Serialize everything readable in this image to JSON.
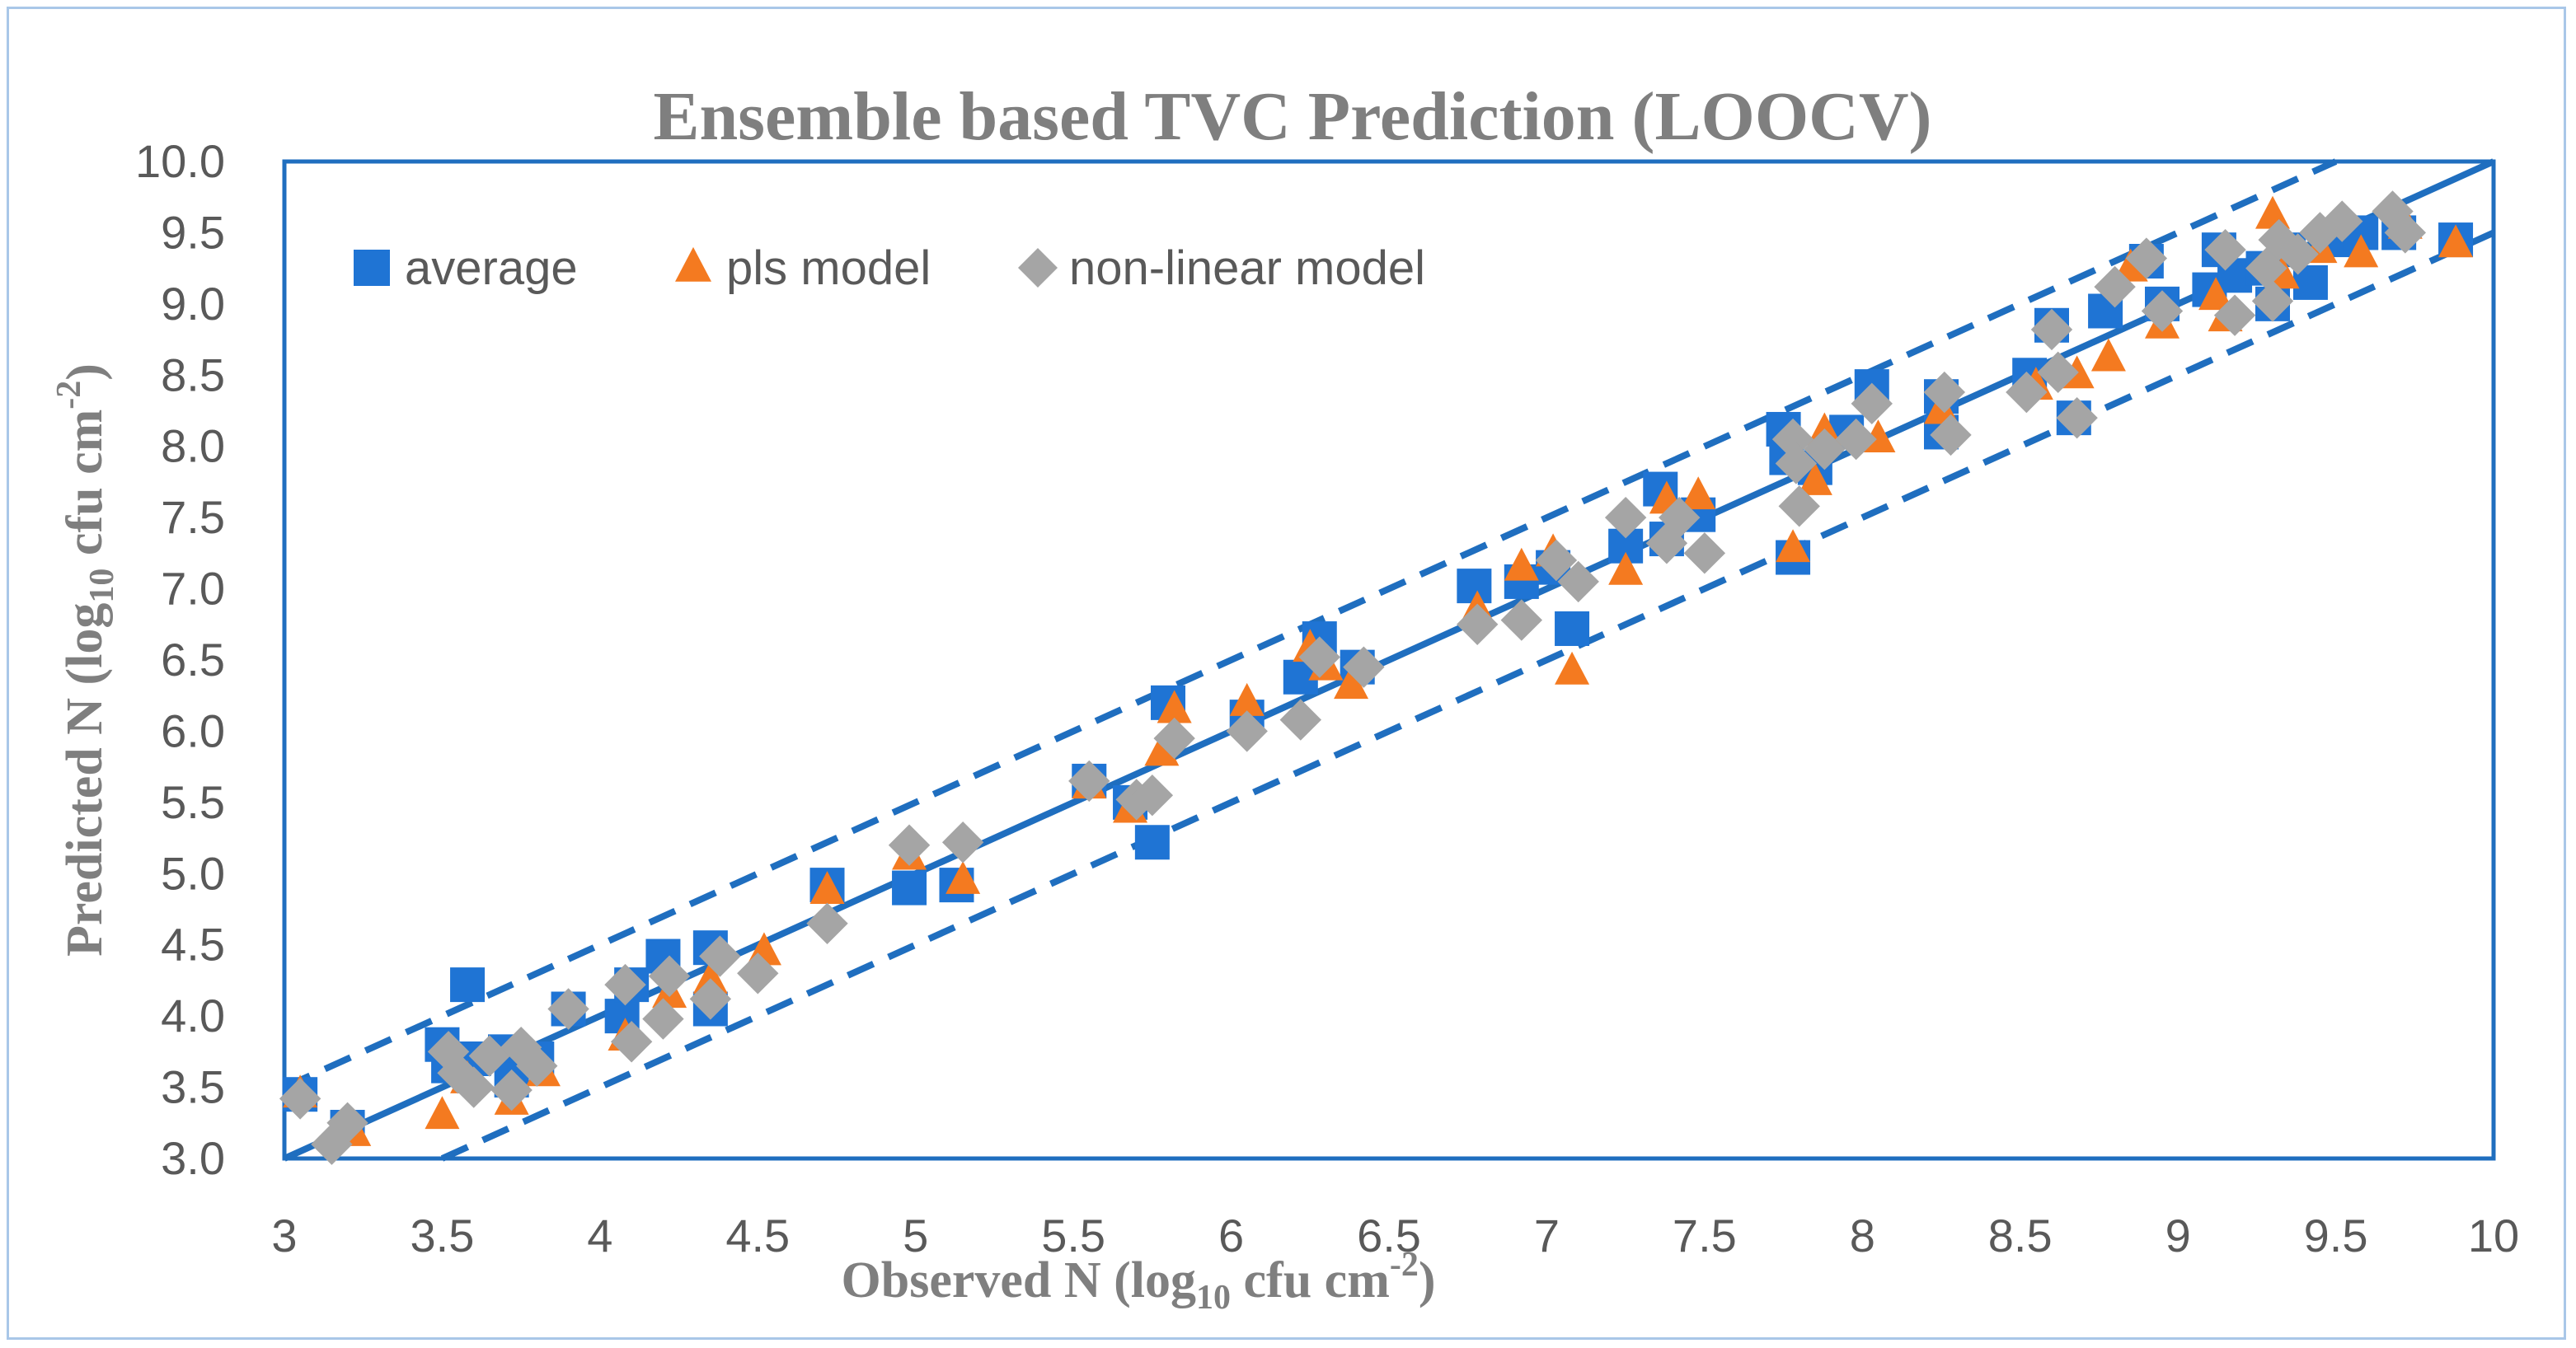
{
  "colors": {
    "average": "#1f74d4",
    "pls": "#f47a20",
    "nonlinear": "#a5a5a5",
    "line": "#1f6ebf",
    "frame": "#a9c7e8",
    "text": "#7f7f7f"
  },
  "chart_data": {
    "type": "scatter",
    "title": "Ensemble based TVC Prediction (LOOCV)",
    "xlabel_main": "Observed N (log",
    "xlabel_sub": "10",
    "xlabel_end": " cfu cm",
    "xlabel_sup": "-2",
    "xlabel_close": ")",
    "ylabel_main": "Predicted N (log",
    "ylabel_sub": "10",
    "ylabel_end": " cfu cm",
    "ylabel_sup": "-2",
    "ylabel_close": ")",
    "xlim": [
      3,
      10
    ],
    "ylim": [
      3,
      10
    ],
    "x_ticks": [
      3,
      3.5,
      4,
      4.5,
      5,
      5.5,
      6,
      6.5,
      7,
      7.5,
      8,
      8.5,
      9,
      9.5,
      10
    ],
    "x_tick_labels": [
      "3",
      "3.5",
      "4",
      "4.5",
      "5",
      "5.5",
      "6",
      "6.5",
      "7",
      "7.5",
      "8",
      "8.5",
      "9",
      "9.5",
      "10"
    ],
    "y_ticks": [
      3,
      3.5,
      4,
      4.5,
      5,
      5.5,
      6,
      6.5,
      7,
      7.5,
      8,
      8.5,
      9,
      9.5,
      10
    ],
    "y_tick_labels": [
      "3.0",
      "3.5",
      "4.0",
      "4.5",
      "5.0",
      "5.5",
      "6.0",
      "6.5",
      "7.0",
      "7.5",
      "8.0",
      "8.5",
      "9.0",
      "9.5",
      "10.0"
    ],
    "legend": [
      {
        "name": "average",
        "marker": "square",
        "label": "average"
      },
      {
        "name": "pls",
        "marker": "triangle",
        "label": "pls model"
      },
      {
        "name": "nonlinear",
        "marker": "diamond",
        "label": "non-linear model"
      }
    ],
    "legend_position": "top-left",
    "lines": [
      {
        "name": "identity",
        "style": "solid",
        "x": [
          3,
          10
        ],
        "y": [
          3,
          10
        ]
      },
      {
        "name": "upper-bound",
        "style": "dashed",
        "x": [
          3,
          9.5
        ],
        "y": [
          3.5,
          10
        ]
      },
      {
        "name": "lower-bound",
        "style": "dashed",
        "x": [
          3.5,
          10
        ],
        "y": [
          3,
          9.5
        ]
      }
    ],
    "series": [
      {
        "name": "average",
        "x": [
          3.05,
          3.2,
          3.5,
          3.52,
          3.58,
          3.6,
          3.7,
          3.72,
          3.8,
          3.9,
          4.07,
          4.1,
          4.2,
          4.35,
          4.35,
          4.72,
          4.98,
          5.13,
          5.55,
          5.68,
          5.75,
          5.8,
          6.05,
          6.22,
          6.28,
          6.4,
          6.77,
          6.92,
          7.02,
          7.08,
          7.25,
          7.36,
          7.38,
          7.48,
          7.75,
          7.76,
          7.78,
          7.85,
          7.95,
          8.03,
          8.25,
          8.25,
          8.53,
          8.6,
          8.67,
          8.77,
          8.9,
          8.95,
          9.1,
          9.13,
          9.18,
          9.27,
          9.3,
          9.35,
          9.42,
          9.5,
          9.58,
          9.7,
          9.88
        ],
        "y": [
          3.45,
          3.22,
          3.8,
          3.65,
          4.22,
          3.7,
          3.75,
          3.55,
          3.7,
          4.05,
          4.0,
          4.22,
          4.42,
          4.05,
          4.48,
          4.92,
          4.9,
          4.92,
          5.65,
          5.5,
          5.22,
          6.2,
          6.1,
          6.38,
          6.65,
          6.45,
          7.02,
          7.05,
          7.15,
          6.72,
          7.3,
          7.7,
          7.35,
          7.52,
          8.12,
          7.92,
          7.22,
          7.85,
          8.1,
          8.42,
          8.35,
          8.1,
          8.5,
          8.85,
          8.2,
          8.95,
          9.3,
          9.0,
          9.1,
          9.38,
          9.2,
          9.25,
          9.0,
          9.38,
          9.15,
          9.45,
          9.5,
          9.5,
          9.45
        ]
      },
      {
        "name": "pls",
        "x": [
          3.05,
          3.22,
          3.5,
          3.58,
          3.72,
          3.82,
          4.08,
          4.22,
          4.35,
          4.52,
          4.72,
          4.98,
          5.15,
          5.55,
          5.68,
          5.78,
          5.82,
          6.05,
          6.25,
          6.3,
          6.38,
          6.78,
          6.92,
          7.02,
          7.08,
          7.25,
          7.38,
          7.48,
          7.78,
          7.85,
          7.88,
          8.05,
          8.25,
          8.55,
          8.68,
          8.78,
          8.85,
          8.95,
          9.12,
          9.15,
          9.3,
          9.33,
          9.45,
          9.58,
          9.72,
          9.88
        ],
        "y": [
          3.45,
          3.18,
          3.3,
          3.55,
          3.4,
          3.6,
          3.85,
          4.15,
          4.25,
          4.45,
          4.88,
          5.12,
          4.95,
          5.62,
          5.45,
          5.85,
          6.15,
          6.2,
          6.58,
          6.45,
          6.32,
          6.85,
          7.15,
          7.25,
          6.42,
          7.12,
          7.62,
          7.65,
          7.28,
          7.75,
          8.1,
          8.05,
          8.25,
          8.42,
          8.5,
          8.62,
          9.25,
          8.85,
          9.05,
          8.9,
          9.62,
          9.2,
          9.38,
          9.35,
          9.55,
          9.42
        ]
      },
      {
        "name": "nonlinear",
        "x": [
          3.05,
          3.15,
          3.2,
          3.52,
          3.55,
          3.6,
          3.65,
          3.72,
          3.75,
          3.8,
          3.9,
          4.08,
          4.1,
          4.2,
          4.22,
          4.35,
          4.38,
          4.5,
          4.72,
          4.98,
          5.15,
          5.55,
          5.7,
          5.75,
          5.82,
          6.05,
          6.22,
          6.28,
          6.42,
          6.78,
          6.92,
          7.03,
          7.1,
          7.25,
          7.38,
          7.42,
          7.5,
          7.78,
          7.79,
          7.8,
          7.88,
          7.98,
          8.03,
          8.26,
          8.28,
          8.52,
          8.6,
          8.62,
          8.68,
          8.8,
          8.9,
          8.95,
          9.15,
          9.18,
          9.28,
          9.3,
          9.32,
          9.38,
          9.45,
          9.52,
          9.68,
          9.72
        ],
        "y": [
          3.42,
          3.1,
          3.25,
          3.75,
          3.6,
          3.5,
          3.72,
          3.48,
          3.78,
          3.65,
          4.05,
          4.22,
          3.82,
          3.98,
          4.28,
          4.12,
          4.42,
          4.3,
          4.65,
          5.2,
          5.22,
          5.65,
          5.52,
          5.55,
          5.95,
          6.0,
          6.08,
          6.52,
          6.45,
          6.75,
          6.78,
          7.2,
          7.05,
          7.5,
          7.32,
          7.5,
          7.25,
          8.05,
          7.88,
          7.58,
          7.98,
          8.05,
          8.3,
          8.38,
          8.08,
          8.38,
          8.82,
          8.52,
          8.2,
          9.12,
          9.32,
          8.95,
          9.38,
          8.92,
          9.25,
          9.02,
          9.45,
          9.35,
          9.5,
          9.58,
          9.65,
          9.5
        ]
      }
    ]
  }
}
